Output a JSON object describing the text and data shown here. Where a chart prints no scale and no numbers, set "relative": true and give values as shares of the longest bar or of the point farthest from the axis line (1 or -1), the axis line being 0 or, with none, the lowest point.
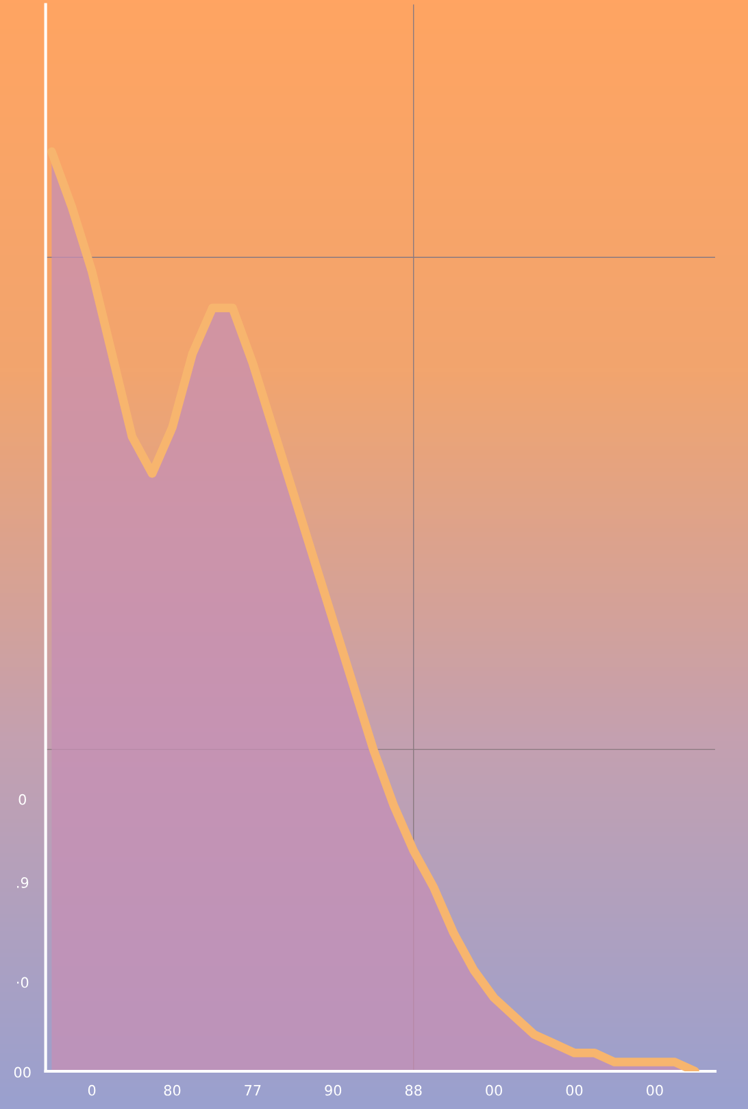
{
  "chart_data": {
    "type": "area",
    "relative": true,
    "categories": [
      null,
      null,
      "0",
      null,
      null,
      null,
      "80",
      null,
      null,
      null,
      "77",
      null,
      null,
      null,
      "90",
      null,
      null,
      null,
      "88",
      null,
      null,
      null,
      "00",
      null,
      null,
      null,
      "00",
      null,
      null,
      null,
      "00",
      null,
      null
    ],
    "series": [
      {
        "color": "#f7b56e",
        "values": [
          1.0,
          0.94,
          0.87,
          0.78,
          0.69,
          0.65,
          0.7,
          0.78,
          0.83,
          0.83,
          0.77,
          0.7,
          0.63,
          0.56,
          0.49,
          0.42,
          0.35,
          0.29,
          0.24,
          0.2,
          0.15,
          0.11,
          0.08,
          0.06,
          0.04,
          0.03,
          0.02,
          0.02,
          0.01,
          0.01,
          0.01,
          0.01,
          0.0
        ]
      }
    ],
    "ref_lines": [
      {
        "axis": "y",
        "value": 0.885,
        "color": "#8a7a80"
      },
      {
        "axis": "y",
        "value": 0.35,
        "color": "#8a7a80"
      },
      {
        "axis": "x",
        "value": "88",
        "color": "#8a7a80"
      }
    ],
    "annotations": [
      "0",
      ".9",
      "·0",
      "00"
    ],
    "grid": false,
    "legend": false
  }
}
